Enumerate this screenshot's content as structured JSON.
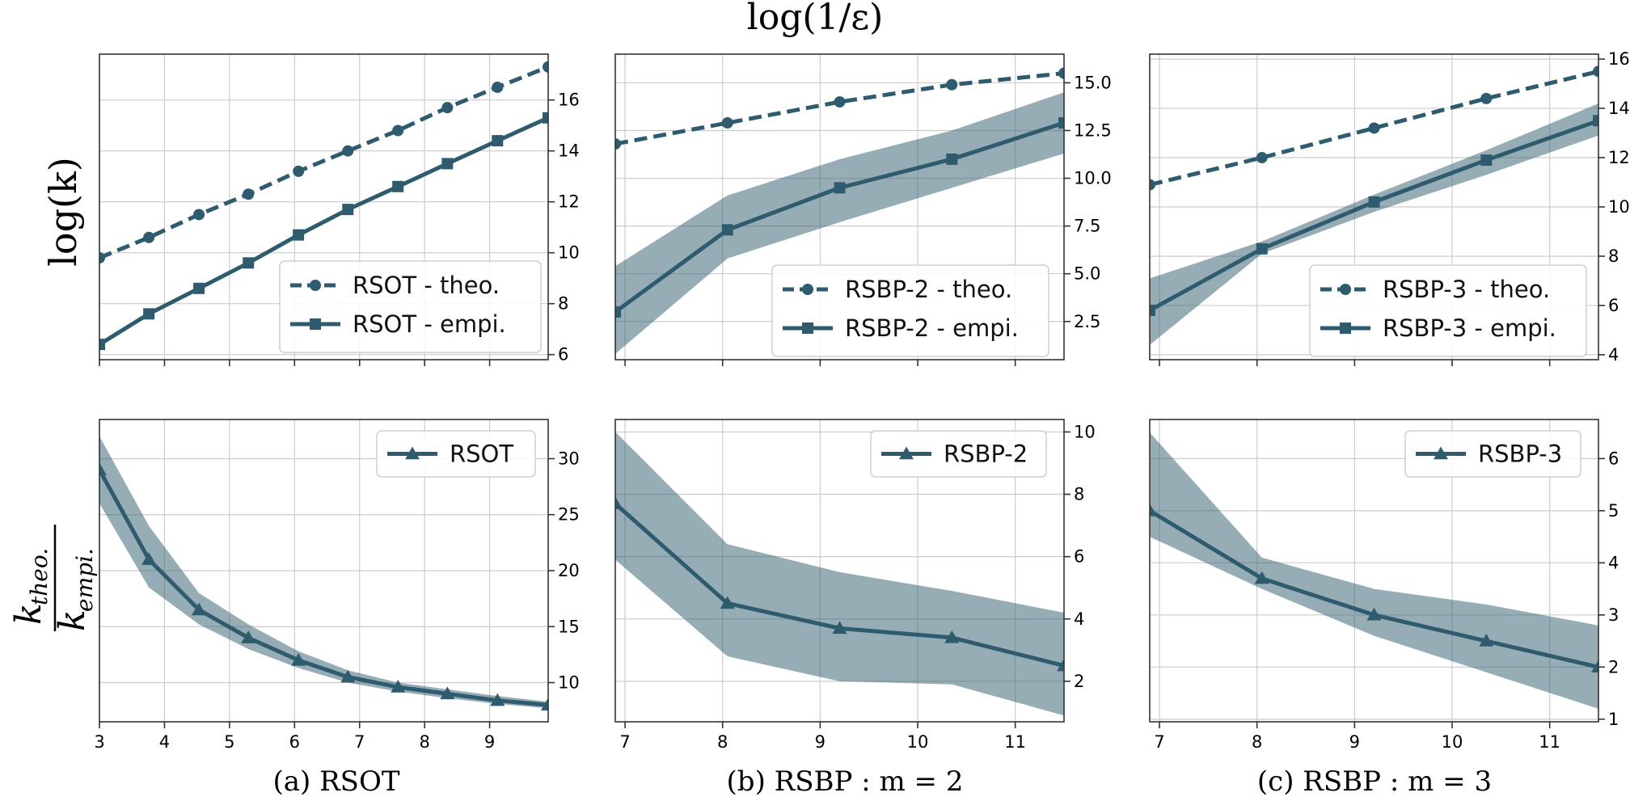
{
  "figure": {
    "top_label": "log(1/ε)",
    "row_labels": {
      "top": "log(k)",
      "bottom_num": "k",
      "bottom_num_sub": "theo.",
      "bottom_den": "k",
      "bottom_den_sub": "empi."
    },
    "captions": [
      "(a) RSOT",
      "(b) RSBP : m = 2",
      "(c) RSBP : m = 3"
    ],
    "color": "#2e5b6e"
  },
  "chart_data": [
    {
      "panel": "a-top",
      "type": "line",
      "xlim": [
        3,
        9.9
      ],
      "ylim": [
        5.8,
        17.8
      ],
      "xticks": [
        3,
        4,
        5,
        6,
        7,
        8,
        9
      ],
      "yticks": [
        6,
        8,
        10,
        12,
        14,
        16
      ],
      "ytick_labels": [
        "6",
        "8",
        "10",
        "12",
        "14",
        "16"
      ],
      "show_xtick_labels": false,
      "grid": true,
      "legend": "lower-right",
      "series": [
        {
          "name": "RSOT - theo.",
          "style": "dashed",
          "marker": "circle",
          "x": [
            3,
            3.76,
            4.53,
            5.29,
            6.06,
            6.82,
            7.59,
            8.35,
            9.12,
            9.9
          ],
          "y": [
            9.8,
            10.6,
            11.5,
            12.3,
            13.2,
            14.0,
            14.8,
            15.7,
            16.5,
            17.3
          ]
        },
        {
          "name": "RSOT - empi.",
          "style": "solid",
          "marker": "square",
          "x": [
            3,
            3.76,
            4.53,
            5.29,
            6.06,
            6.82,
            7.59,
            8.35,
            9.12,
            9.9
          ],
          "y": [
            6.4,
            7.6,
            8.6,
            9.6,
            10.7,
            11.7,
            12.6,
            13.5,
            14.4,
            15.3
          ]
        }
      ]
    },
    {
      "panel": "b-top",
      "type": "line",
      "xlim": [
        6.9,
        11.5
      ],
      "ylim": [
        0.5,
        16.5
      ],
      "xticks": [
        7,
        8,
        9,
        10,
        11
      ],
      "yticks": [
        2.5,
        5,
        7.5,
        10,
        12.5,
        15
      ],
      "ytick_labels": [
        "2.5",
        "5.0",
        "7.5",
        "10.0",
        "12.5",
        "15.0"
      ],
      "show_xtick_labels": false,
      "grid": true,
      "legend": "lower-right",
      "series": [
        {
          "name": "RSBP-2 - theo.",
          "style": "dashed",
          "marker": "circle",
          "x": [
            6.9,
            8.05,
            9.2,
            10.35,
            11.5
          ],
          "y": [
            11.8,
            12.9,
            14.0,
            14.9,
            15.5
          ]
        },
        {
          "name": "RSBP-2 - empi.",
          "style": "solid",
          "marker": "square",
          "x": [
            6.9,
            8.05,
            9.2,
            10.35,
            11.5
          ],
          "y": [
            3.0,
            7.3,
            9.5,
            11.0,
            12.9
          ],
          "lower": [
            0.8,
            5.8,
            7.7,
            9.5,
            11.3
          ],
          "upper": [
            5.4,
            9.1,
            11.0,
            12.5,
            14.5
          ]
        }
      ]
    },
    {
      "panel": "c-top",
      "type": "line",
      "xlim": [
        6.9,
        11.5
      ],
      "ylim": [
        3.8,
        16.2
      ],
      "xticks": [
        7,
        8,
        9,
        10,
        11
      ],
      "yticks": [
        4,
        6,
        8,
        10,
        12,
        14,
        16
      ],
      "ytick_labels": [
        "4",
        "6",
        "8",
        "10",
        "12",
        "14",
        "16"
      ],
      "show_xtick_labels": false,
      "grid": true,
      "legend": "lower-right",
      "series": [
        {
          "name": "RSBP-3 - theo.",
          "style": "dashed",
          "marker": "circle",
          "x": [
            6.9,
            8.05,
            9.2,
            10.35,
            11.5
          ],
          "y": [
            10.9,
            12.0,
            13.2,
            14.4,
            15.5
          ],
          "lower": [],
          "upper": []
        },
        {
          "name": "RSBP-3 - empi.",
          "style": "solid",
          "marker": "square",
          "x": [
            6.9,
            8.05,
            9.2,
            10.35,
            11.5
          ],
          "y": [
            5.8,
            8.3,
            10.2,
            11.9,
            13.5
          ],
          "lower": [
            4.4,
            8.1,
            9.8,
            11.3,
            12.9
          ],
          "upper": [
            7.1,
            8.6,
            10.5,
            12.3,
            14.2
          ]
        }
      ]
    },
    {
      "panel": "a-bottom",
      "type": "line",
      "xlim": [
        3,
        9.9
      ],
      "ylim": [
        6.5,
        33.5
      ],
      "xticks": [
        3,
        4,
        5,
        6,
        7,
        8,
        9
      ],
      "xtick_labels": [
        "3",
        "4",
        "5",
        "6",
        "7",
        "8",
        "9"
      ],
      "yticks": [
        10,
        15,
        20,
        25,
        30
      ],
      "ytick_labels": [
        "10",
        "15",
        "20",
        "25",
        "30"
      ],
      "show_xtick_labels": true,
      "grid": true,
      "legend": "upper-right",
      "series": [
        {
          "name": "RSOT",
          "style": "solid",
          "marker": "triangle",
          "x": [
            3,
            3.76,
            4.53,
            5.29,
            6.06,
            6.82,
            7.59,
            8.35,
            9.12,
            9.9
          ],
          "y": [
            29.0,
            21.0,
            16.5,
            14.0,
            12.0,
            10.5,
            9.6,
            9.0,
            8.4,
            8.0
          ],
          "lower": [
            26.0,
            18.5,
            15.2,
            13.0,
            11.3,
            10.0,
            9.2,
            8.6,
            8.1,
            7.7
          ],
          "upper": [
            32.0,
            24.0,
            18.0,
            15.2,
            12.8,
            11.1,
            10.0,
            9.4,
            8.8,
            8.3
          ]
        }
      ]
    },
    {
      "panel": "b-bottom",
      "type": "line",
      "xlim": [
        6.9,
        11.5
      ],
      "ylim": [
        0.7,
        10.4
      ],
      "xticks": [
        7,
        8,
        9,
        10,
        11
      ],
      "xtick_labels": [
        "7",
        "8",
        "9",
        "10",
        "11"
      ],
      "yticks": [
        2,
        4,
        6,
        8,
        10
      ],
      "ytick_labels": [
        "2",
        "4",
        "6",
        "8",
        "10"
      ],
      "show_xtick_labels": true,
      "grid": true,
      "legend": "upper-right",
      "series": [
        {
          "name": "RSBP-2",
          "style": "solid",
          "marker": "triangle",
          "x": [
            6.9,
            8.05,
            9.2,
            10.35,
            11.5
          ],
          "y": [
            7.7,
            4.5,
            3.7,
            3.4,
            2.5
          ],
          "lower": [
            5.9,
            2.8,
            2.0,
            1.9,
            0.9
          ],
          "upper": [
            10.0,
            6.4,
            5.5,
            4.9,
            4.2
          ]
        }
      ]
    },
    {
      "panel": "c-bottom",
      "type": "line",
      "xlim": [
        6.9,
        11.5
      ],
      "ylim": [
        0.95,
        6.75
      ],
      "xticks": [
        7,
        8,
        9,
        10,
        11
      ],
      "xtick_labels": [
        "7",
        "8",
        "9",
        "10",
        "11"
      ],
      "yticks": [
        1,
        2,
        3,
        4,
        5,
        6
      ],
      "ytick_labels": [
        "1",
        "2",
        "3",
        "4",
        "5",
        "6"
      ],
      "show_xtick_labels": true,
      "grid": true,
      "legend": "upper-right",
      "series": [
        {
          "name": "RSBP-3",
          "style": "solid",
          "marker": "triangle",
          "x": [
            6.9,
            8.05,
            9.2,
            10.35,
            11.5
          ],
          "y": [
            5.0,
            3.7,
            3.0,
            2.5,
            2.0
          ],
          "lower": [
            4.5,
            3.5,
            2.6,
            1.9,
            1.2
          ],
          "upper": [
            6.5,
            4.1,
            3.5,
            3.2,
            2.8
          ]
        }
      ]
    }
  ]
}
